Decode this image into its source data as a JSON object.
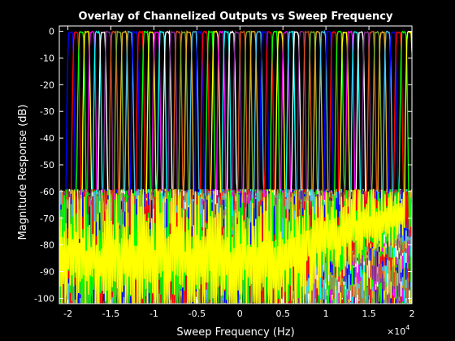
{
  "chart_data": {
    "type": "line",
    "title": "Overlay of Channelized Outputs vs Sweep Frequency",
    "xlabel": "Sweep Frequency (Hz)",
    "ylabel": "Magnitude Response (dB)",
    "x_multiplier_base": "×10",
    "x_multiplier_exp": "4",
    "xlim": [
      -2.1,
      2.0
    ],
    "ylim": [
      -102,
      2
    ],
    "x_ticks": [
      {
        "v": -2,
        "label": "-2"
      },
      {
        "v": -1.5,
        "label": "-1.5"
      },
      {
        "v": -1,
        "label": "-1"
      },
      {
        "v": -0.5,
        "label": "-0.5"
      },
      {
        "v": 0,
        "label": "0"
      },
      {
        "v": 0.5,
        "label": "0.5"
      },
      {
        "v": 1,
        "label": "1"
      },
      {
        "v": 1.5,
        "label": "1.5"
      },
      {
        "v": 2,
        "label": "2"
      }
    ],
    "y_ticks": [
      {
        "v": 0,
        "label": "0"
      },
      {
        "v": -10,
        "label": "-10"
      },
      {
        "v": -20,
        "label": "-20"
      },
      {
        "v": -30,
        "label": "-30"
      },
      {
        "v": -40,
        "label": "-40"
      },
      {
        "v": -50,
        "label": "-50"
      },
      {
        "v": -60,
        "label": "-60"
      },
      {
        "v": -70,
        "label": "-70"
      },
      {
        "v": -80,
        "label": "-80"
      },
      {
        "v": -90,
        "label": "-90"
      },
      {
        "v": -100,
        "label": "-100"
      }
    ],
    "grid": false,
    "background": "#000000",
    "axis_color": "#ffffff",
    "series_colors": [
      "#0000ff",
      "#ff0000",
      "#00ff00",
      "#ffff00",
      "#ff00ff",
      "#00ffff",
      "#ffffff",
      "#7e2f8e",
      "#d95319",
      "#77ac30",
      "#edb120",
      "#4dbeee"
    ],
    "channels": {
      "count": 64,
      "spacing": 0.0625,
      "center_first": -1.96875,
      "passband_level": 0,
      "passband_halfwidth": 0.022,
      "transition_halfwidth": 0.055,
      "stopband_level": -60,
      "stopband_floor": -100
    }
  }
}
